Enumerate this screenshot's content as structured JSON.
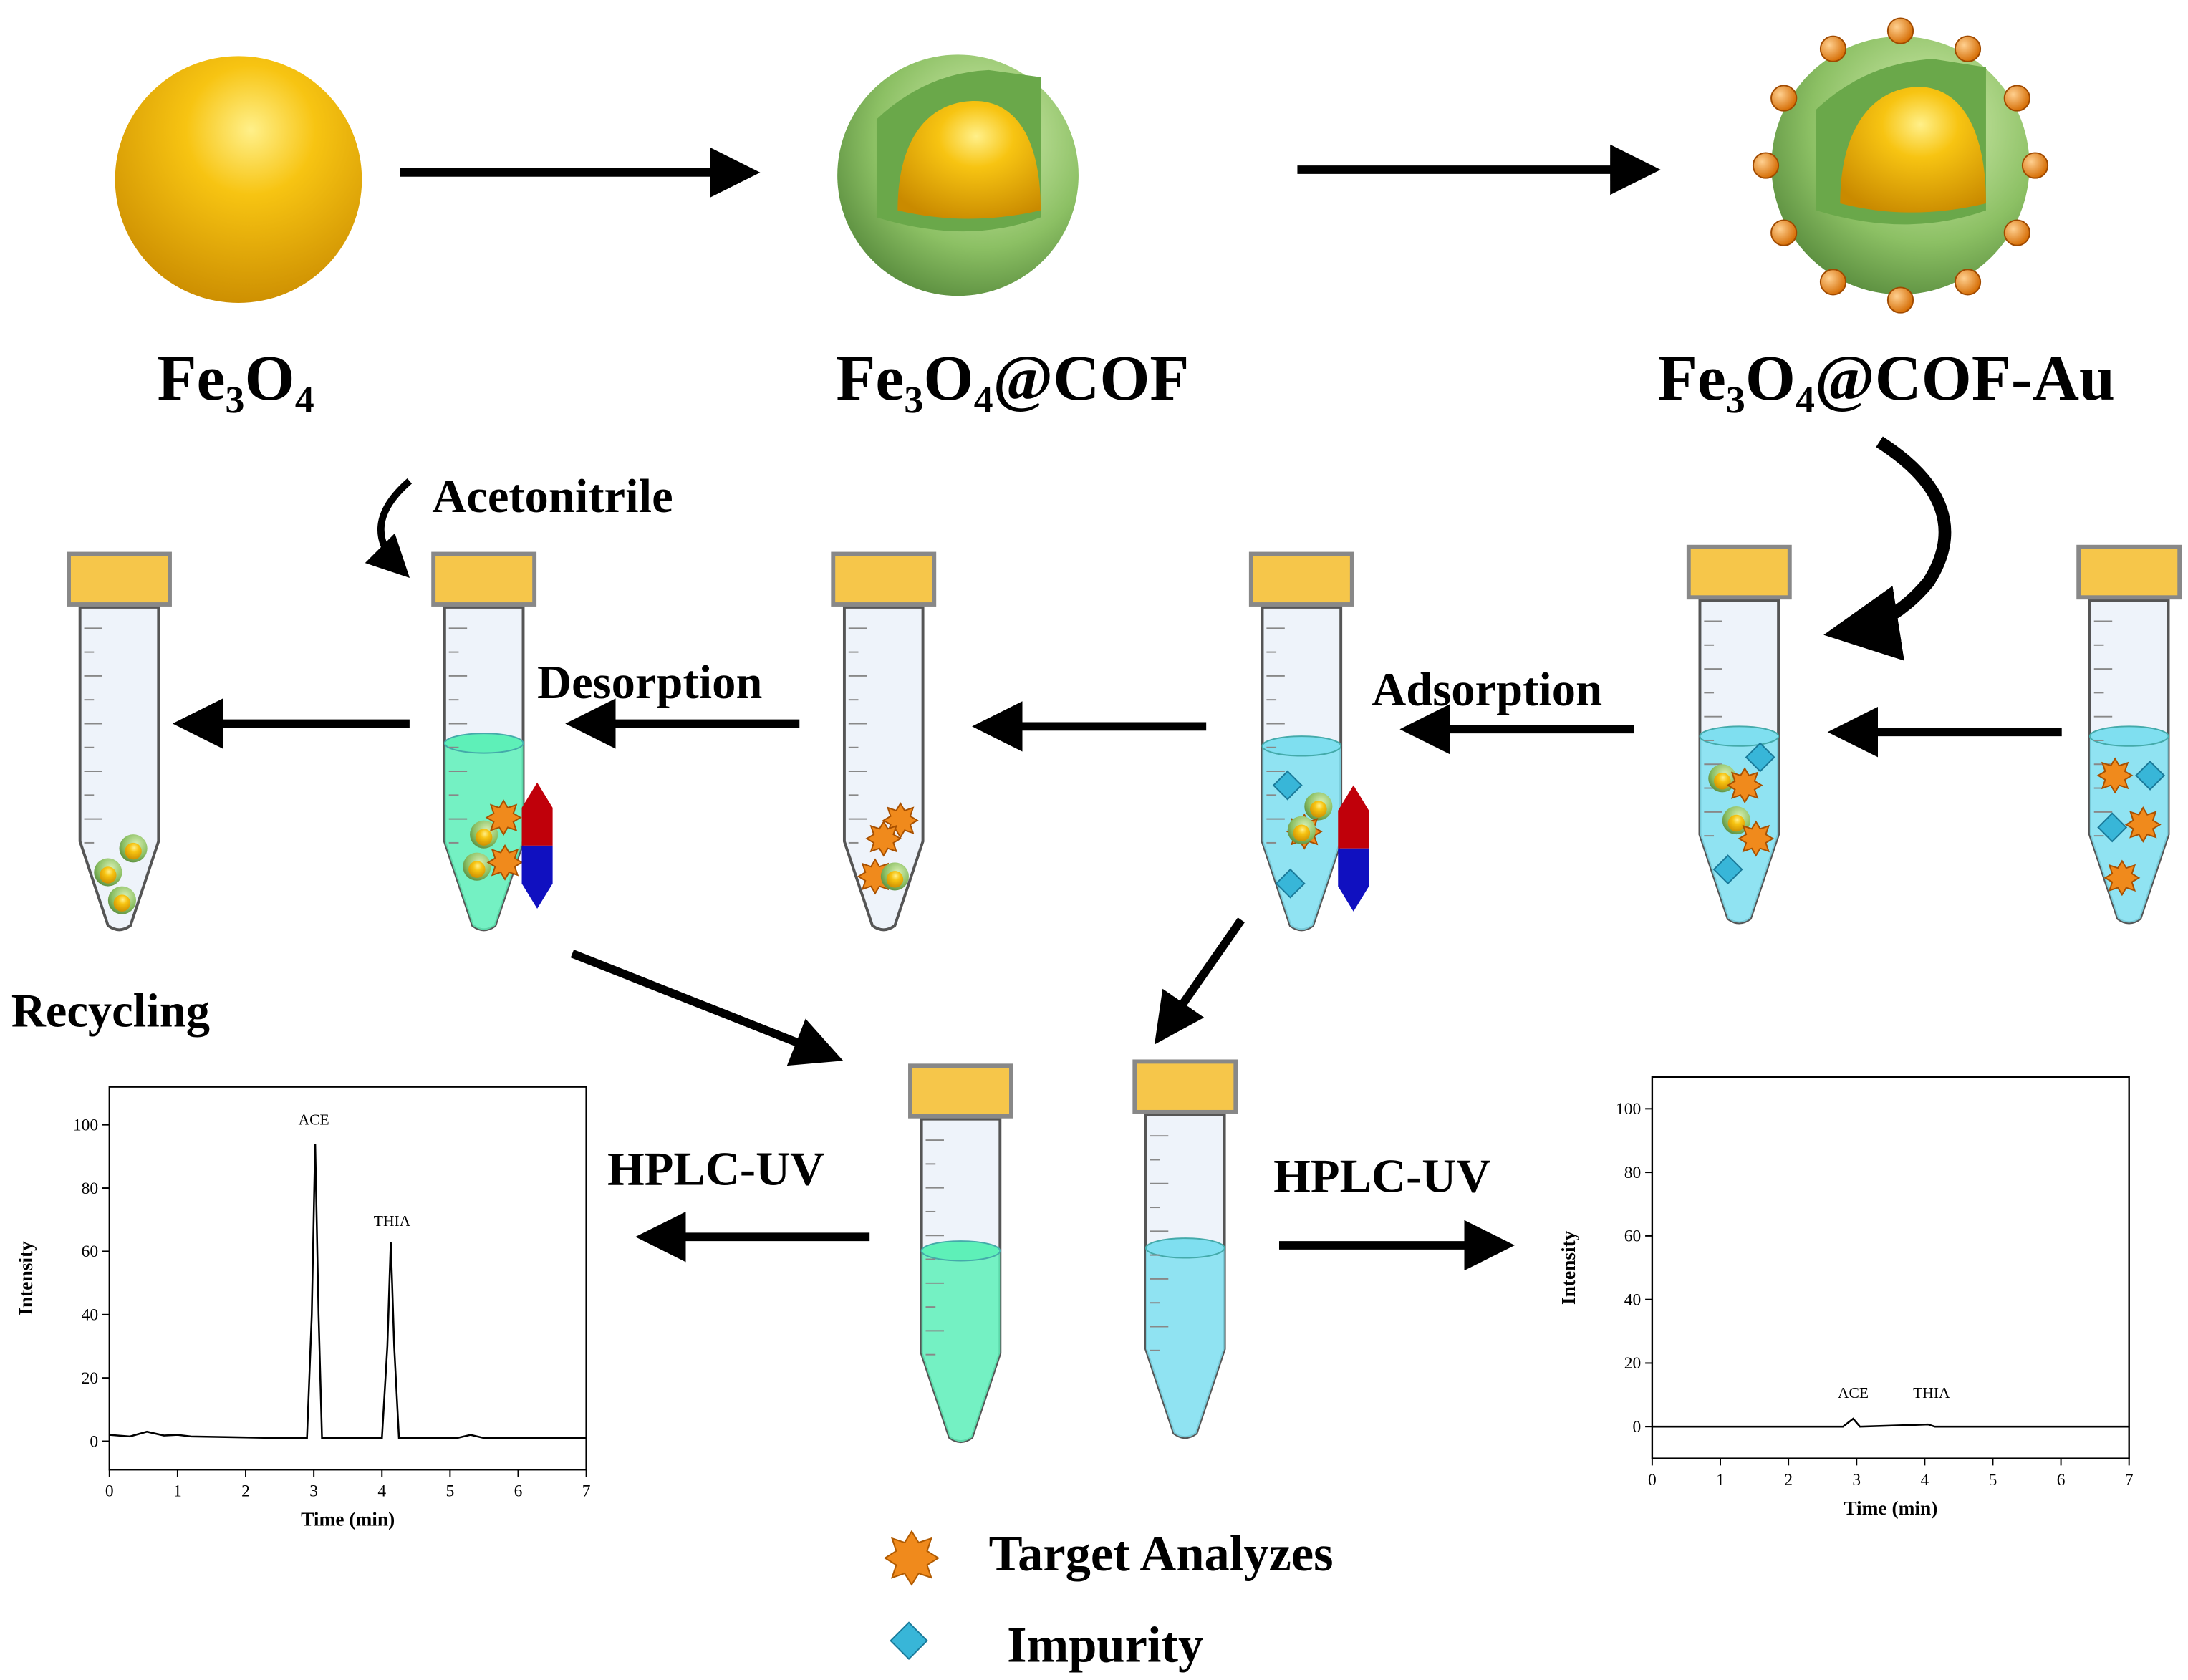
{
  "materials": [
    "Fe₃O₄",
    "Fe₃O₄@COF",
    "Fe₃O₄@COF-Au"
  ],
  "steps": {
    "acetonitrile": "Acetonitrile",
    "desorption": "Desorption",
    "adsorption": "Adsorption",
    "recycling": "Recycling",
    "hplc_left": "HPLC-UV",
    "hplc_right": "HPLC-UV"
  },
  "legend": {
    "target": "Target Analyzes",
    "impurity": "Impurity"
  },
  "chart_data": [
    {
      "type": "line",
      "x_label": "Time (min)",
      "y_label": "Intensity",
      "xlim": [
        0,
        7
      ],
      "ylim": [
        -9,
        112
      ],
      "xticks": [
        0,
        1,
        2,
        3,
        4,
        5,
        6,
        7
      ],
      "yticks": [
        0,
        20,
        40,
        60,
        80,
        100
      ],
      "x": [
        0,
        0.3,
        0.55,
        0.8,
        1,
        1.2,
        2.5,
        2.9,
        2.97,
        3.02,
        3.07,
        3.12,
        4.0,
        4.08,
        4.13,
        4.18,
        4.25,
        5.1,
        5.3,
        5.5,
        7
      ],
      "values": [
        2,
        1.5,
        3,
        1.8,
        2,
        1.5,
        1,
        1,
        40,
        94,
        40,
        1,
        1,
        30,
        63,
        30,
        1,
        1,
        2,
        1,
        1
      ],
      "annotations": [
        {
          "text": "ACE",
          "x": 3.0,
          "y": 100
        },
        {
          "text": "THIA",
          "x": 4.15,
          "y": 68
        }
      ]
    },
    {
      "type": "line",
      "x_label": "Time (min)",
      "y_label": "Intensity",
      "xlim": [
        0,
        7
      ],
      "ylim": [
        -10,
        110
      ],
      "xticks": [
        0,
        1,
        2,
        3,
        4,
        5,
        6,
        7
      ],
      "yticks": [
        0,
        20,
        40,
        60,
        80,
        100
      ],
      "x": [
        0,
        2.8,
        2.95,
        3.05,
        4.05,
        4.15,
        7
      ],
      "values": [
        0,
        0,
        2.5,
        0,
        0.7,
        0,
        0
      ],
      "annotations": [
        {
          "text": "ACE",
          "x": 2.95,
          "y": 9
        },
        {
          "text": "THIA",
          "x": 4.1,
          "y": 9
        }
      ]
    }
  ]
}
